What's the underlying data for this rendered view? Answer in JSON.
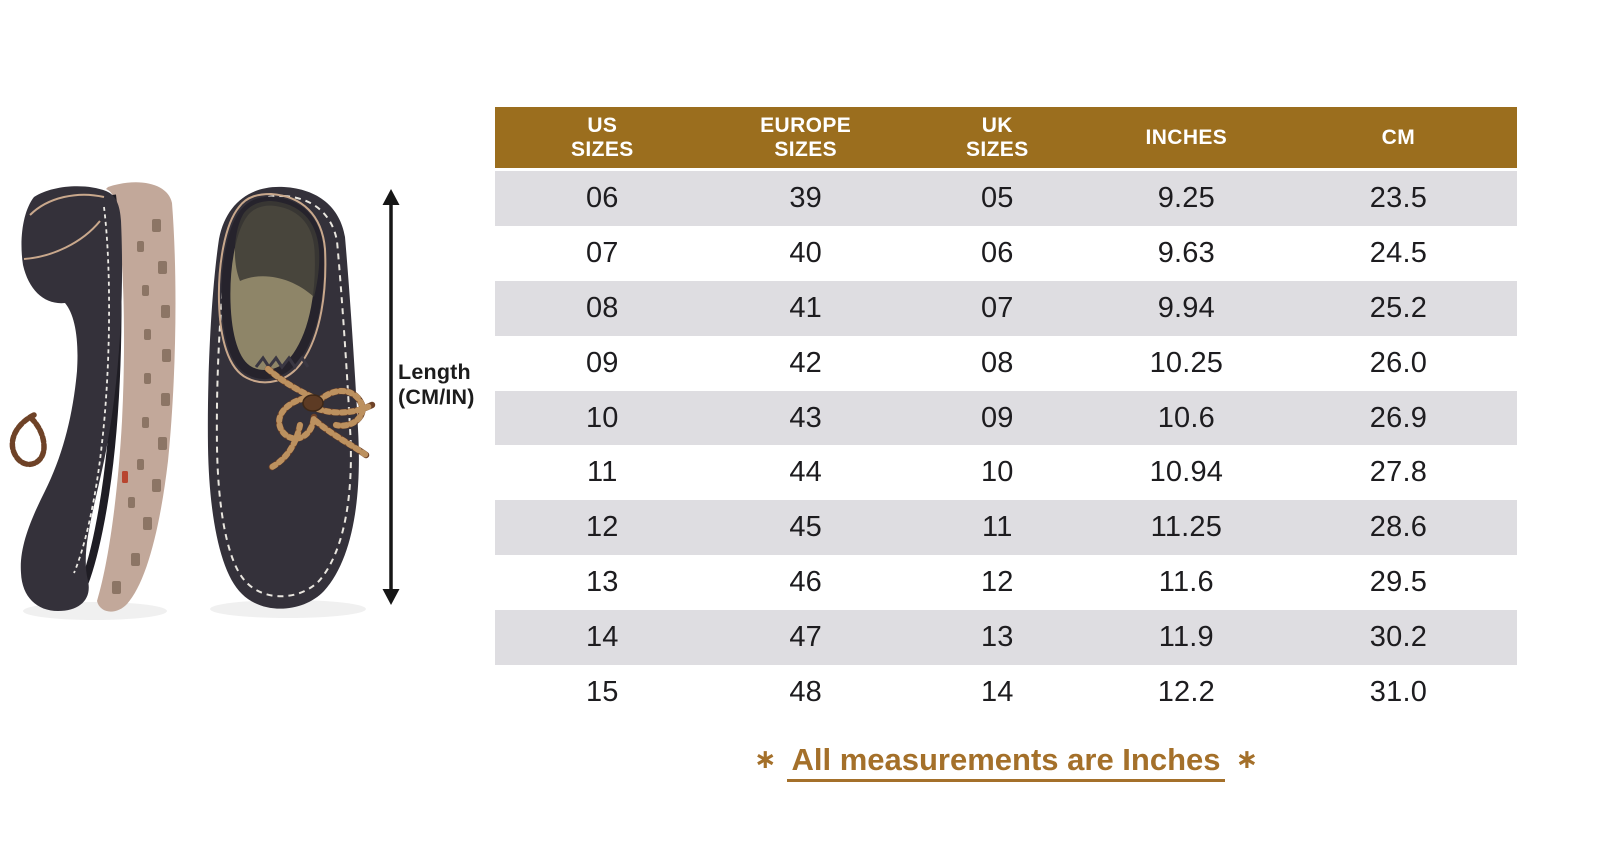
{
  "measure_label": {
    "line1": "Length",
    "line2": "(CM/IN)"
  },
  "table": {
    "header_lines": [
      [
        "US",
        "SIZES"
      ],
      [
        "EUROPE",
        "SIZES"
      ],
      [
        "UK",
        "SIZES"
      ],
      [
        "INCHES"
      ],
      [
        "CM"
      ]
    ]
  },
  "footnote": {
    "asterisk": "∗",
    "text": "All measurements are Inches"
  },
  "colors": {
    "header_bg": "#9b6e1e",
    "header_text": "#ffffff",
    "row_alt_bg": "#dedde1",
    "row_bg": "#ffffff",
    "cell_text": "#1d1c1f",
    "footnote_text": "#a4702a",
    "arrow": "#161616",
    "shoe_dark": "#34313a",
    "sole_beige": "#c2a89a",
    "insole_olive": "#8e8568",
    "lace_brown": "#6e4227"
  },
  "chart_data": {
    "type": "table",
    "columns": [
      "US SIZES",
      "EUROPE SIZES",
      "UK SIZES",
      "INCHES",
      "CM"
    ],
    "rows": [
      [
        "06",
        "39",
        "05",
        "9.25",
        "23.5"
      ],
      [
        "07",
        "40",
        "06",
        "9.63",
        "24.5"
      ],
      [
        "08",
        "41",
        "07",
        "9.94",
        "25.2"
      ],
      [
        "09",
        "42",
        "08",
        "10.25",
        "26.0"
      ],
      [
        "10",
        "43",
        "09",
        "10.6",
        "26.9"
      ],
      [
        "11",
        "44",
        "10",
        "10.94",
        "27.8"
      ],
      [
        "12",
        "45",
        "11",
        "11.25",
        "28.6"
      ],
      [
        "13",
        "46",
        "12",
        "11.6",
        "29.5"
      ],
      [
        "14",
        "47",
        "13",
        "11.9",
        "30.2"
      ],
      [
        "15",
        "48",
        "14",
        "12.2",
        "31.0"
      ]
    ],
    "annotations": [
      "Length (CM/IN)",
      "All measurements are Inches"
    ],
    "legend_position": "none",
    "grid": false
  }
}
